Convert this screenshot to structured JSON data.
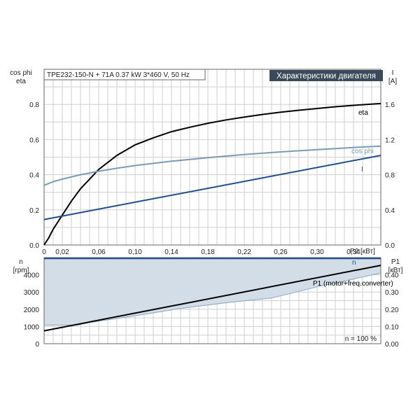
{
  "chart_data": [
    {
      "type": "line",
      "title": "Характеристики двигателя",
      "info_label": "TPE232-150-N + 71A   0.37 kW   3*460 V, 50 Hz",
      "xlabel": "P2 [кВт]",
      "xticks": [
        "0",
        "0,02",
        "0,06",
        "0,10",
        "0,14",
        "0,18",
        "0,22",
        "0,26",
        "0,30",
        "0,34"
      ],
      "xlim": [
        0,
        0.37
      ],
      "ylabel_left_line1": "cos phi",
      "ylabel_left_line2": "eta",
      "yticks_left": [
        "0.0",
        "0.2",
        "0.4",
        "0.6",
        "0.8"
      ],
      "ylim_left": [
        0,
        1.0
      ],
      "ylabel_right_line1": "I",
      "ylabel_right_line2": "[A]",
      "yticks_right": [
        "0.0",
        "0.4",
        "0.8",
        "1.2",
        "1.6"
      ],
      "ylim_right": [
        0,
        2.0
      ],
      "grid": true,
      "series": [
        {
          "name": "eta",
          "axis": "left",
          "color": "#000000",
          "x": [
            0,
            0.005,
            0.01,
            0.02,
            0.03,
            0.04,
            0.06,
            0.08,
            0.1,
            0.12,
            0.14,
            0.16,
            0.18,
            0.2,
            0.22,
            0.24,
            0.26,
            0.28,
            0.3,
            0.32,
            0.34,
            0.37
          ],
          "y": [
            0.0,
            0.04,
            0.09,
            0.17,
            0.25,
            0.32,
            0.43,
            0.51,
            0.57,
            0.61,
            0.645,
            0.67,
            0.693,
            0.712,
            0.728,
            0.743,
            0.756,
            0.767,
            0.777,
            0.787,
            0.795,
            0.805
          ]
        },
        {
          "name": "cos phi",
          "axis": "left",
          "color": "#7b9ab3",
          "x": [
            0,
            0.01,
            0.02,
            0.04,
            0.06,
            0.08,
            0.1,
            0.14,
            0.18,
            0.22,
            0.26,
            0.3,
            0.34,
            0.37
          ],
          "y": [
            0.34,
            0.36,
            0.375,
            0.4,
            0.42,
            0.437,
            0.452,
            0.477,
            0.497,
            0.515,
            0.53,
            0.543,
            0.555,
            0.563
          ]
        },
        {
          "name": "I",
          "axis": "right",
          "color": "#1f4e8c",
          "x": [
            0,
            0.37
          ],
          "y": [
            0.29,
            1.02
          ]
        }
      ]
    },
    {
      "type": "area",
      "ylabel_left_line1": "n",
      "ylabel_left_line2": "[rpm]",
      "yticks_left": [
        "0",
        "1000",
        "2000",
        "3000",
        "4000"
      ],
      "ylim_left": [
        0,
        5000
      ],
      "ylabel_right_line1": "P1",
      "ylabel_right_line2": "[кВт]",
      "yticks_right": [
        "0.00",
        "0.10",
        "0.20",
        "0.30",
        "0.40"
      ],
      "ylim_right": [
        0,
        0.5
      ],
      "xlim": [
        0,
        0.37
      ],
      "annotation": "n = 100 %",
      "grid": true,
      "series": [
        {
          "name": "n",
          "axis": "left",
          "color": "#1f4e8c",
          "fill": "#d2dde8",
          "x": [
            0,
            0.37
          ],
          "y": [
            4950,
            4950
          ],
          "lower_x": [
            0,
            0.037,
            0.05,
            0.1,
            0.15,
            0.2,
            0.25,
            0.3,
            0.37
          ],
          "lower_y": [
            1080,
            1080,
            1230,
            1620,
            2050,
            2380,
            2650,
            3300,
            4100
          ]
        },
        {
          "name": "P1 (motor+freq.converter)",
          "axis": "right",
          "color": "#000000",
          "x": [
            0,
            0.37
          ],
          "y": [
            0.075,
            0.455
          ]
        }
      ]
    }
  ]
}
